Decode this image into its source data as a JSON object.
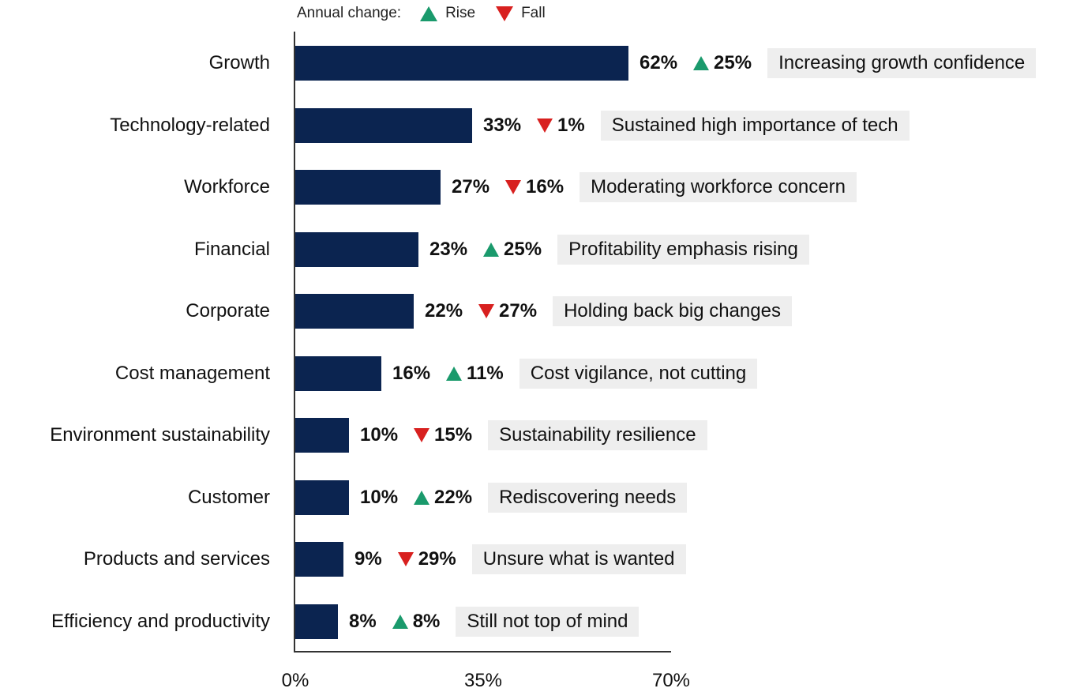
{
  "legend": {
    "title": "Annual change:",
    "rise_label": "Rise",
    "fall_label": "Fall",
    "rise_color": "#1a9a6c",
    "fall_color": "#d8201f"
  },
  "chart_data": {
    "type": "bar",
    "orientation": "horizontal",
    "bar_color": "#0b2450",
    "categories": [
      "Growth",
      "Technology-related",
      "Workforce",
      "Financial",
      "Corporate",
      "Cost management",
      "Environment sustainability",
      "Customer",
      "Products and services",
      "Efficiency and productivity"
    ],
    "values": [
      62,
      33,
      27,
      23,
      22,
      16,
      10,
      10,
      9,
      8
    ],
    "value_labels": [
      "62%",
      "33%",
      "27%",
      "23%",
      "22%",
      "16%",
      "10%",
      "10%",
      "9%",
      "8%"
    ],
    "changes": [
      {
        "direction": "up",
        "label": "25%"
      },
      {
        "direction": "down",
        "label": "1%"
      },
      {
        "direction": "down",
        "label": "16%"
      },
      {
        "direction": "up",
        "label": "25%"
      },
      {
        "direction": "down",
        "label": "27%"
      },
      {
        "direction": "up",
        "label": "11%"
      },
      {
        "direction": "down",
        "label": "15%"
      },
      {
        "direction": "up",
        "label": "22%"
      },
      {
        "direction": "down",
        "label": "29%"
      },
      {
        "direction": "up",
        "label": "8%"
      }
    ],
    "annotations": [
      "Increasing growth confidence",
      "Sustained high importance of tech",
      "Moderating workforce concern",
      "Profitability emphasis rising",
      "Holding back big changes",
      "Cost vigilance, not cutting",
      "Sustainability resilience",
      "Rediscovering needs",
      "Unsure what is wanted",
      "Still not top of mind"
    ],
    "xlim": [
      0,
      70
    ],
    "xticks": [
      0,
      35,
      70
    ],
    "xtick_labels": [
      "0%",
      "35%",
      "70%"
    ],
    "grid": false
  }
}
